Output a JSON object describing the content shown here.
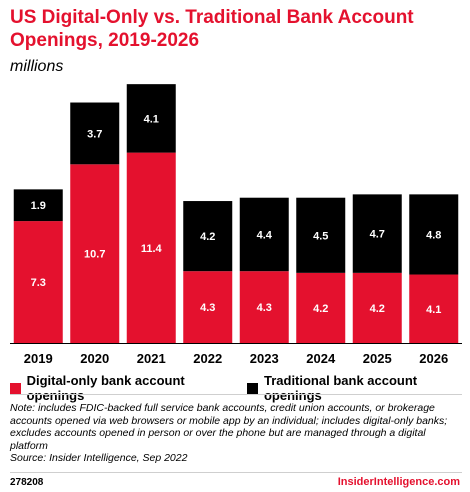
{
  "colors": {
    "digital": "#e4112e",
    "traditional": "#000000",
    "title": "#e4112e"
  },
  "legend": {
    "digital_label": "Digital-only bank account openings",
    "traditional_label": "Traditional bank account openings"
  },
  "note_text": "Note: includes FDIC-backed full service bank accounts, credit union accounts, or brokerage accounts opened via web browsers or mobile app by an individual; includes digital-only banks; excludes accounts opened in person or over the phone but are managed through a digital platform",
  "source_text": "Source: Insider Intelligence, Sep 2022",
  "footer": {
    "id": "278208",
    "brand": "InsiderIntelligence.com"
  },
  "chart_data": {
    "type": "bar",
    "stacked": true,
    "title": "US Digital-Only vs. Traditional Bank Account Openings, 2019-2026",
    "subtitle": "millions",
    "categories": [
      "2019",
      "2020",
      "2021",
      "2022",
      "2023",
      "2024",
      "2025",
      "2026"
    ],
    "series": [
      {
        "name": "Digital-only bank account openings",
        "values": [
          7.3,
          10.7,
          11.4,
          4.3,
          4.3,
          4.2,
          4.2,
          4.1
        ]
      },
      {
        "name": "Traditional bank account openings",
        "values": [
          1.9,
          3.7,
          4.1,
          4.2,
          4.4,
          4.5,
          4.7,
          4.8
        ]
      }
    ],
    "grid": false,
    "legend_position": "bottom"
  }
}
